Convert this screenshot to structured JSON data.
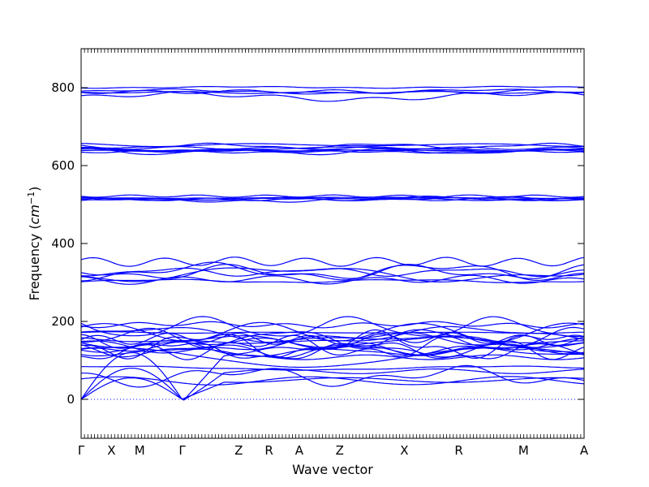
{
  "chart_data": {
    "type": "line",
    "xlabel": "Wave vector",
    "ylabel": "Frequency (cm^-1)",
    "ylim": [
      -100,
      900
    ],
    "yticks": [
      0,
      200,
      400,
      600,
      800
    ],
    "path_labels": [
      "Γ",
      "X",
      "M",
      "Γ",
      "Z",
      "R",
      "A",
      "Z",
      "X",
      "R",
      "M",
      "A"
    ],
    "path_positions": [
      0,
      0.3,
      0.58,
      1.0,
      1.56,
      1.86,
      2.16,
      2.56,
      3.2,
      3.74,
      4.38,
      4.98
    ],
    "zero_line": true,
    "line_color": "#0000ff",
    "band_groups": [
      {
        "center": 790,
        "spread": 18,
        "count": 5
      },
      {
        "center": 645,
        "spread": 14,
        "count": 8
      },
      {
        "center": 520,
        "spread": 12,
        "count": 6
      },
      {
        "center": 330,
        "spread": 35,
        "count": 7
      },
      {
        "center": 150,
        "spread": 55,
        "count": 18
      },
      {
        "center": 60,
        "spread": 40,
        "count": 3
      }
    ],
    "acoustic_branches": {
      "count": 3,
      "gamma_points": [
        0,
        1.0
      ],
      "max": [
        55,
        80,
        120
      ]
    }
  }
}
